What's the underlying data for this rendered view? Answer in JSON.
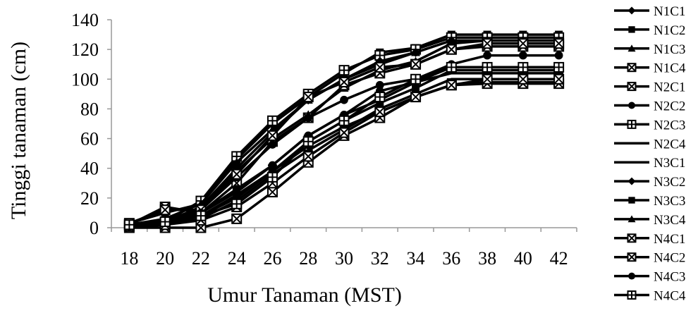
{
  "chart_data": {
    "type": "line",
    "title": "",
    "xlabel": "Umur Tanaman (MST)",
    "ylabel": "Tinggi tanaman (cm)",
    "x": [
      18,
      20,
      22,
      24,
      26,
      28,
      30,
      32,
      34,
      36,
      38,
      40,
      42
    ],
    "ylim": [
      0,
      140
    ],
    "yticks": [
      0,
      20,
      40,
      60,
      80,
      100,
      120,
      140
    ],
    "grid": false,
    "legend": "right",
    "colors": {
      "line": "#000000",
      "background": "#ffffff"
    },
    "series": [
      {
        "name": "N1C1",
        "marker": "diamond",
        "values": [
          0,
          2,
          8,
          22,
          38,
          55,
          68,
          78,
          88,
          96,
          98,
          98,
          98
        ]
      },
      {
        "name": "N1C2",
        "marker": "square",
        "values": [
          3,
          10,
          16,
          46,
          70,
          88,
          104,
          118,
          121,
          130,
          130,
          130,
          130
        ]
      },
      {
        "name": "N1C3",
        "marker": "triangle",
        "values": [
          1,
          3,
          12,
          38,
          60,
          76,
          94,
          106,
          112,
          124,
          126,
          126,
          126
        ]
      },
      {
        "name": "N1C4",
        "marker": "x-square",
        "values": [
          0,
          0,
          0,
          6,
          24,
          44,
          62,
          74,
          88,
          96,
          97,
          97,
          97
        ]
      },
      {
        "name": "N2C1",
        "marker": "x-square",
        "values": [
          2,
          14,
          10,
          30,
          58,
          74,
          96,
          104,
          110,
          120,
          122,
          122,
          122
        ]
      },
      {
        "name": "N2C2",
        "marker": "circle",
        "values": [
          1,
          5,
          12,
          34,
          56,
          74,
          86,
          96,
          100,
          110,
          116,
          116,
          116
        ]
      },
      {
        "name": "N2C3",
        "marker": "plus-square",
        "values": [
          2,
          4,
          18,
          48,
          72,
          90,
          106,
          116,
          120,
          128,
          128,
          128,
          128
        ]
      },
      {
        "name": "N2C4",
        "marker": "dash",
        "values": [
          1,
          3,
          10,
          24,
          42,
          62,
          76,
          86,
          98,
          104,
          104,
          104,
          104
        ]
      },
      {
        "name": "N3C1",
        "marker": "dash",
        "values": [
          0,
          2,
          6,
          18,
          36,
          52,
          66,
          80,
          90,
          100,
          100,
          100,
          100
        ]
      },
      {
        "name": "N3C2",
        "marker": "diamond",
        "values": [
          2,
          4,
          14,
          40,
          64,
          86,
          100,
          112,
          118,
          126,
          126,
          126,
          126
        ]
      },
      {
        "name": "N3C3",
        "marker": "square",
        "values": [
          1,
          3,
          8,
          20,
          38,
          58,
          72,
          84,
          94,
          106,
          106,
          106,
          106
        ]
      },
      {
        "name": "N3C4",
        "marker": "triangle",
        "values": [
          2,
          6,
          16,
          44,
          66,
          86,
          100,
          110,
          118,
          126,
          126,
          126,
          126
        ]
      },
      {
        "name": "N4C1",
        "marker": "x-square",
        "values": [
          1,
          2,
          5,
          14,
          30,
          48,
          64,
          78,
          88,
          96,
          100,
          100,
          100
        ]
      },
      {
        "name": "N4C2",
        "marker": "x-square",
        "values": [
          3,
          12,
          12,
          36,
          62,
          88,
          98,
          108,
          110,
          120,
          124,
          124,
          124
        ]
      },
      {
        "name": "N4C3",
        "marker": "circle",
        "values": [
          1,
          4,
          10,
          26,
          42,
          62,
          76,
          92,
          98,
          108,
          108,
          108,
          108
        ]
      },
      {
        "name": "N4C4",
        "marker": "plus-square",
        "values": [
          2,
          4,
          8,
          16,
          34,
          58,
          72,
          88,
          100,
          108,
          108,
          108,
          108
        ]
      }
    ]
  }
}
